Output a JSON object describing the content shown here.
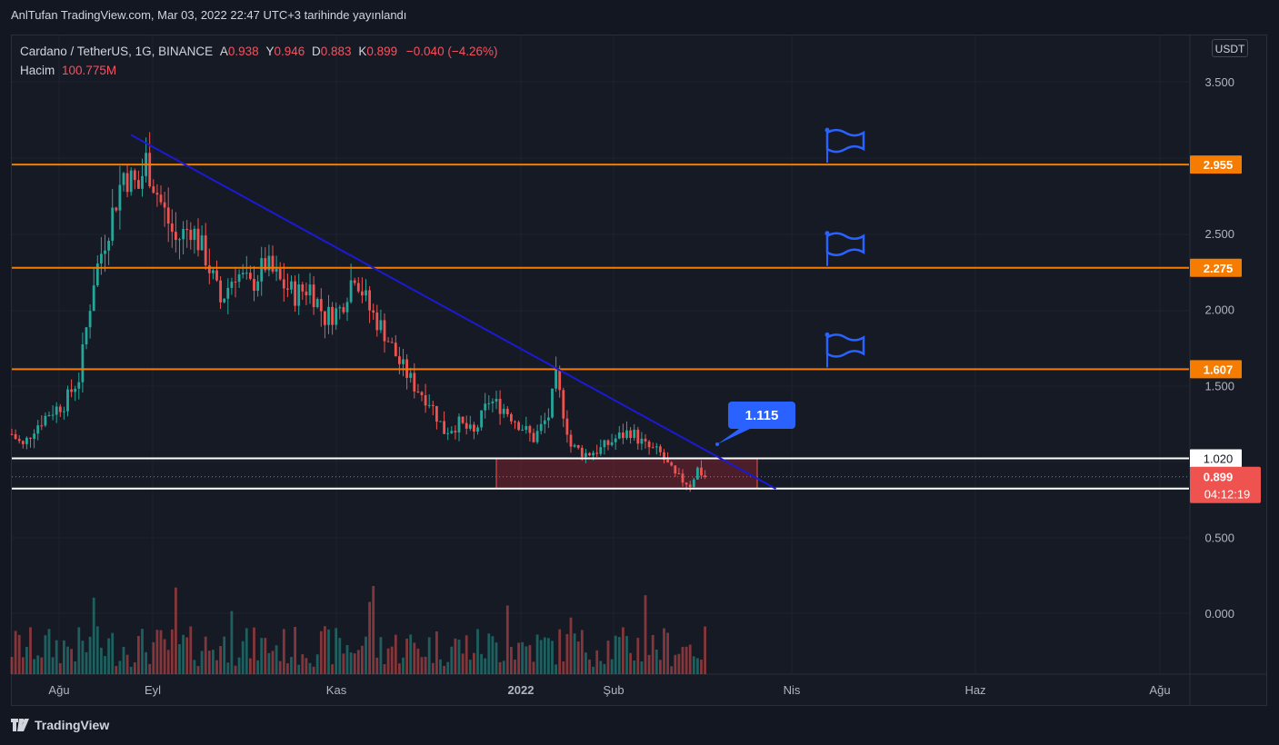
{
  "header": {
    "title": "AnlTufan TradingView.com, Mar 03, 2022 22:47 UTC+3 tarihinde yayınlandı"
  },
  "legend": {
    "symbol": "Cardano / TetherUS, 1G, BINANCE",
    "open_key": "A",
    "open": "0.938",
    "high_key": "Y",
    "high": "0.946",
    "low_key": "D",
    "low": "0.883",
    "close_key": "K",
    "close": "0.899",
    "change": "−0.040 (−4.26%)",
    "volume_label": "Hacim",
    "volume_value": "100.775M"
  },
  "currency": "USDT",
  "footer": {
    "brand": "TradingView",
    "logo_icon": "tradingview-logo-icon"
  },
  "colors": {
    "up": "#26a69a",
    "down": "#ef5350",
    "level": "#f57c00",
    "trend": "#1a1ad6",
    "flag": "#2962ff",
    "callout": "#2962ff",
    "zone": "#b22833"
  },
  "chart_data": {
    "type": "candlestick",
    "ylim": [
      -0.4,
      3.65
    ],
    "y_ticks": [
      "3.500",
      "2.500",
      "2.000",
      "1.500",
      "0.500",
      "0.000"
    ],
    "x_ticks": [
      "Ağu",
      "Eyl",
      "Kas",
      "2022",
      "Şub",
      "Nis",
      "Haz",
      "Ağu"
    ],
    "close_path": [
      {
        "t": 0,
        "v": 1.18
      },
      {
        "t": 3,
        "v": 1.1
      },
      {
        "t": 6,
        "v": 1.22
      },
      {
        "t": 10,
        "v": 1.32
      },
      {
        "t": 14,
        "v": 1.38
      },
      {
        "t": 18,
        "v": 1.55
      },
      {
        "t": 22,
        "v": 2.2
      },
      {
        "t": 26,
        "v": 2.55
      },
      {
        "t": 30,
        "v": 2.9
      },
      {
        "t": 34,
        "v": 2.8
      },
      {
        "t": 36,
        "v": 2.98
      },
      {
        "t": 40,
        "v": 2.7
      },
      {
        "t": 44,
        "v": 2.45
      },
      {
        "t": 48,
        "v": 2.55
      },
      {
        "t": 52,
        "v": 2.35
      },
      {
        "t": 56,
        "v": 2.05
      },
      {
        "t": 60,
        "v": 2.25
      },
      {
        "t": 64,
        "v": 2.15
      },
      {
        "t": 68,
        "v": 2.3
      },
      {
        "t": 72,
        "v": 2.18
      },
      {
        "t": 76,
        "v": 2.1
      },
      {
        "t": 80,
        "v": 2.15
      },
      {
        "t": 84,
        "v": 1.95
      },
      {
        "t": 88,
        "v": 2.0
      },
      {
        "t": 92,
        "v": 2.25
      },
      {
        "t": 96,
        "v": 2.0
      },
      {
        "t": 100,
        "v": 1.85
      },
      {
        "t": 104,
        "v": 1.65
      },
      {
        "t": 108,
        "v": 1.5
      },
      {
        "t": 112,
        "v": 1.4
      },
      {
        "t": 116,
        "v": 1.2
      },
      {
        "t": 120,
        "v": 1.25
      },
      {
        "t": 124,
        "v": 1.18
      },
      {
        "t": 128,
        "v": 1.4
      },
      {
        "t": 132,
        "v": 1.35
      },
      {
        "t": 136,
        "v": 1.25
      },
      {
        "t": 140,
        "v": 1.15
      },
      {
        "t": 144,
        "v": 1.3
      },
      {
        "t": 146,
        "v": 1.55
      },
      {
        "t": 150,
        "v": 1.1
      },
      {
        "t": 154,
        "v": 1.05
      },
      {
        "t": 158,
        "v": 1.08
      },
      {
        "t": 162,
        "v": 1.15
      },
      {
        "t": 166,
        "v": 1.2
      },
      {
        "t": 170,
        "v": 1.1
      },
      {
        "t": 174,
        "v": 1.05
      },
      {
        "t": 178,
        "v": 0.9
      },
      {
        "t": 182,
        "v": 0.85
      },
      {
        "t": 184,
        "v": 0.95
      },
      {
        "t": 186,
        "v": 0.899
      }
    ],
    "volume_range": [
      0,
      1
    ],
    "horizontal_levels": [
      {
        "value": 2.955,
        "label": "2.955",
        "style": "orange"
      },
      {
        "value": 2.275,
        "label": "2.275",
        "style": "orange"
      },
      {
        "value": 1.607,
        "label": "1.607",
        "style": "orange"
      },
      {
        "value": 1.02,
        "label": "1.020",
        "style": "white"
      },
      {
        "value": 0.821,
        "label": "0.821",
        "style": "white"
      }
    ],
    "last_price": {
      "value": 0.899,
      "label": "0.899",
      "countdown": "04:12:19"
    },
    "trendline": {
      "from": {
        "t": 32,
        "v": 3.15
      },
      "to": {
        "t": 205,
        "v": 0.82
      }
    },
    "callout": {
      "label": "1.115",
      "icon": "callout-bubble-icon"
    },
    "flag_icon": "flag-icon",
    "flags_at_levels": [
      2.955,
      2.275,
      1.607
    ],
    "zone": {
      "t_from": 130,
      "t_to": 200,
      "v_from": 0.82,
      "v_to": 1.02
    }
  }
}
